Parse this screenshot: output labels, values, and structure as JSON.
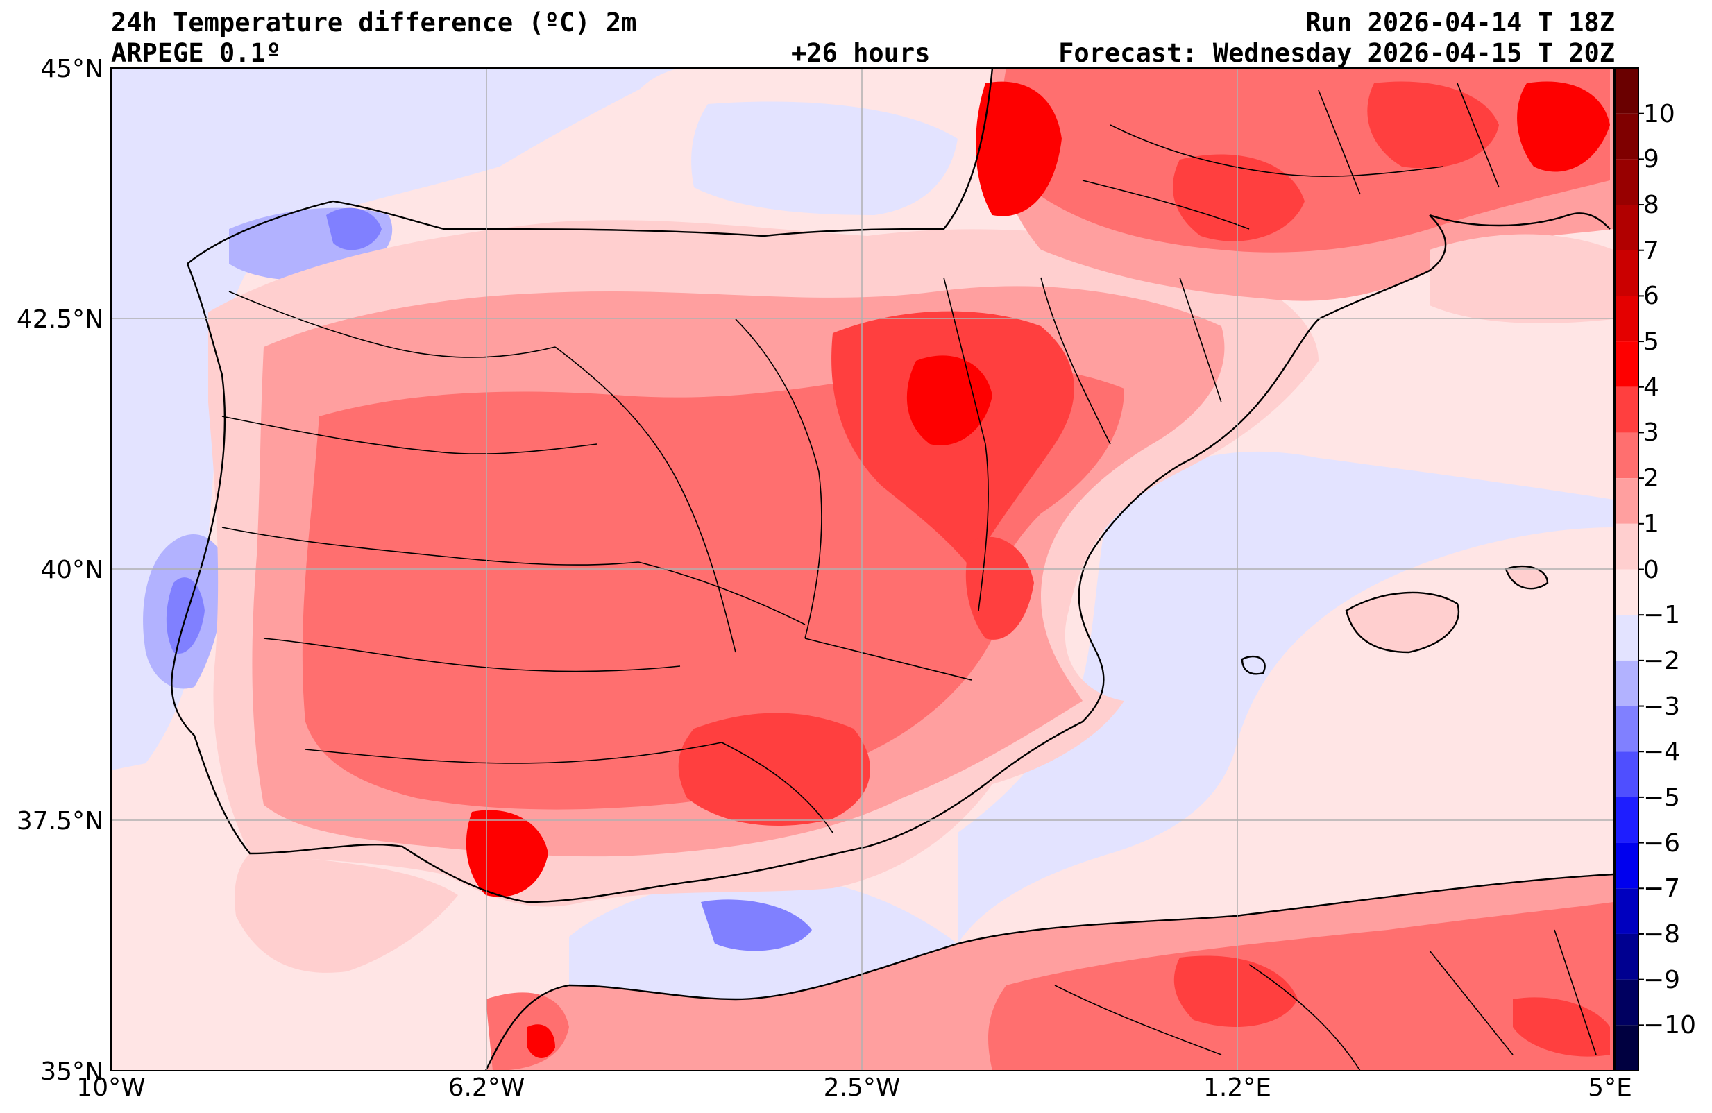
{
  "header": {
    "title_line1": "24h Temperature difference (ºC) 2m",
    "title_line2": "ARPEGE 0.1º",
    "lead_time": "+26 hours",
    "run": "Run 2026-04-14 T 18Z",
    "forecast": "Forecast: Wednesday 2026-04-15 T 20Z"
  },
  "map": {
    "region": "Iberian Peninsula, Balearic Islands and North Africa",
    "projection": "PlateCarree",
    "lon_range": [
      -10,
      5
    ],
    "lat_range": [
      35,
      45
    ],
    "gridlines": true,
    "grid_color": "#b0b0b0",
    "land_outline_color": "#000000",
    "colormap": "seismic",
    "lat_ticks": [
      {
        "value": 45,
        "label": "45°N"
      },
      {
        "value": 42.5,
        "label": "42.5°N"
      },
      {
        "value": 40,
        "label": "40°N"
      },
      {
        "value": 37.5,
        "label": "37.5°N"
      },
      {
        "value": 35,
        "label": "35°N"
      }
    ],
    "lon_ticks": [
      {
        "value": -10,
        "label": "10°W"
      },
      {
        "value": -6.25,
        "label": "6.2°W"
      },
      {
        "value": -2.5,
        "label": "2.5°W"
      },
      {
        "value": 1.25,
        "label": "1.2°E"
      },
      {
        "value": 5,
        "label": "5°E"
      }
    ]
  },
  "colorbar": {
    "levels": [
      10,
      9,
      8,
      7,
      6,
      5,
      4,
      3,
      2,
      1,
      0,
      -1,
      -2,
      -3,
      -4,
      -5,
      -6,
      -7,
      -8,
      -9,
      -10
    ],
    "labels": [
      "10",
      "9",
      "8",
      "7",
      "6",
      "5",
      "4",
      "3",
      "2",
      "1",
      "0",
      "−1",
      "−2",
      "−3",
      "−4",
      "−5",
      "−6",
      "−7",
      "−8",
      "−9",
      "−10"
    ],
    "bands": [
      {
        "from": 10,
        "to": 11,
        "color": "#6a0000"
      },
      {
        "from": 9,
        "to": 10,
        "color": "#7f0000"
      },
      {
        "from": 8,
        "to": 9,
        "color": "#980000"
      },
      {
        "from": 7,
        "to": 8,
        "color": "#b10000"
      },
      {
        "from": 6,
        "to": 7,
        "color": "#cb0000"
      },
      {
        "from": 5,
        "to": 6,
        "color": "#e40000"
      },
      {
        "from": 4,
        "to": 5,
        "color": "#fe0000"
      },
      {
        "from": 3,
        "to": 4,
        "color": "#ff3f3f"
      },
      {
        "from": 2,
        "to": 3,
        "color": "#ff6f6f"
      },
      {
        "from": 1,
        "to": 2,
        "color": "#ff9f9f"
      },
      {
        "from": 0,
        "to": 1,
        "color": "#ffcfcf"
      },
      {
        "from": -1,
        "to": 0,
        "color": "#ffe5e5"
      },
      {
        "from": -2,
        "to": -1,
        "color": "#e3e3ff"
      },
      {
        "from": -3,
        "to": -2,
        "color": "#b2b2ff"
      },
      {
        "from": -4,
        "to": -3,
        "color": "#8080ff"
      },
      {
        "from": -5,
        "to": -4,
        "color": "#4f4fff"
      },
      {
        "from": -6,
        "to": -5,
        "color": "#1e1eff"
      },
      {
        "from": -7,
        "to": -6,
        "color": "#0000ee"
      },
      {
        "from": -8,
        "to": -7,
        "color": "#0000bf"
      },
      {
        "from": -9,
        "to": -8,
        "color": "#000090"
      },
      {
        "from": -10,
        "to": -9,
        "color": "#000060"
      },
      {
        "from": -11,
        "to": -10,
        "color": "#000040"
      }
    ]
  }
}
